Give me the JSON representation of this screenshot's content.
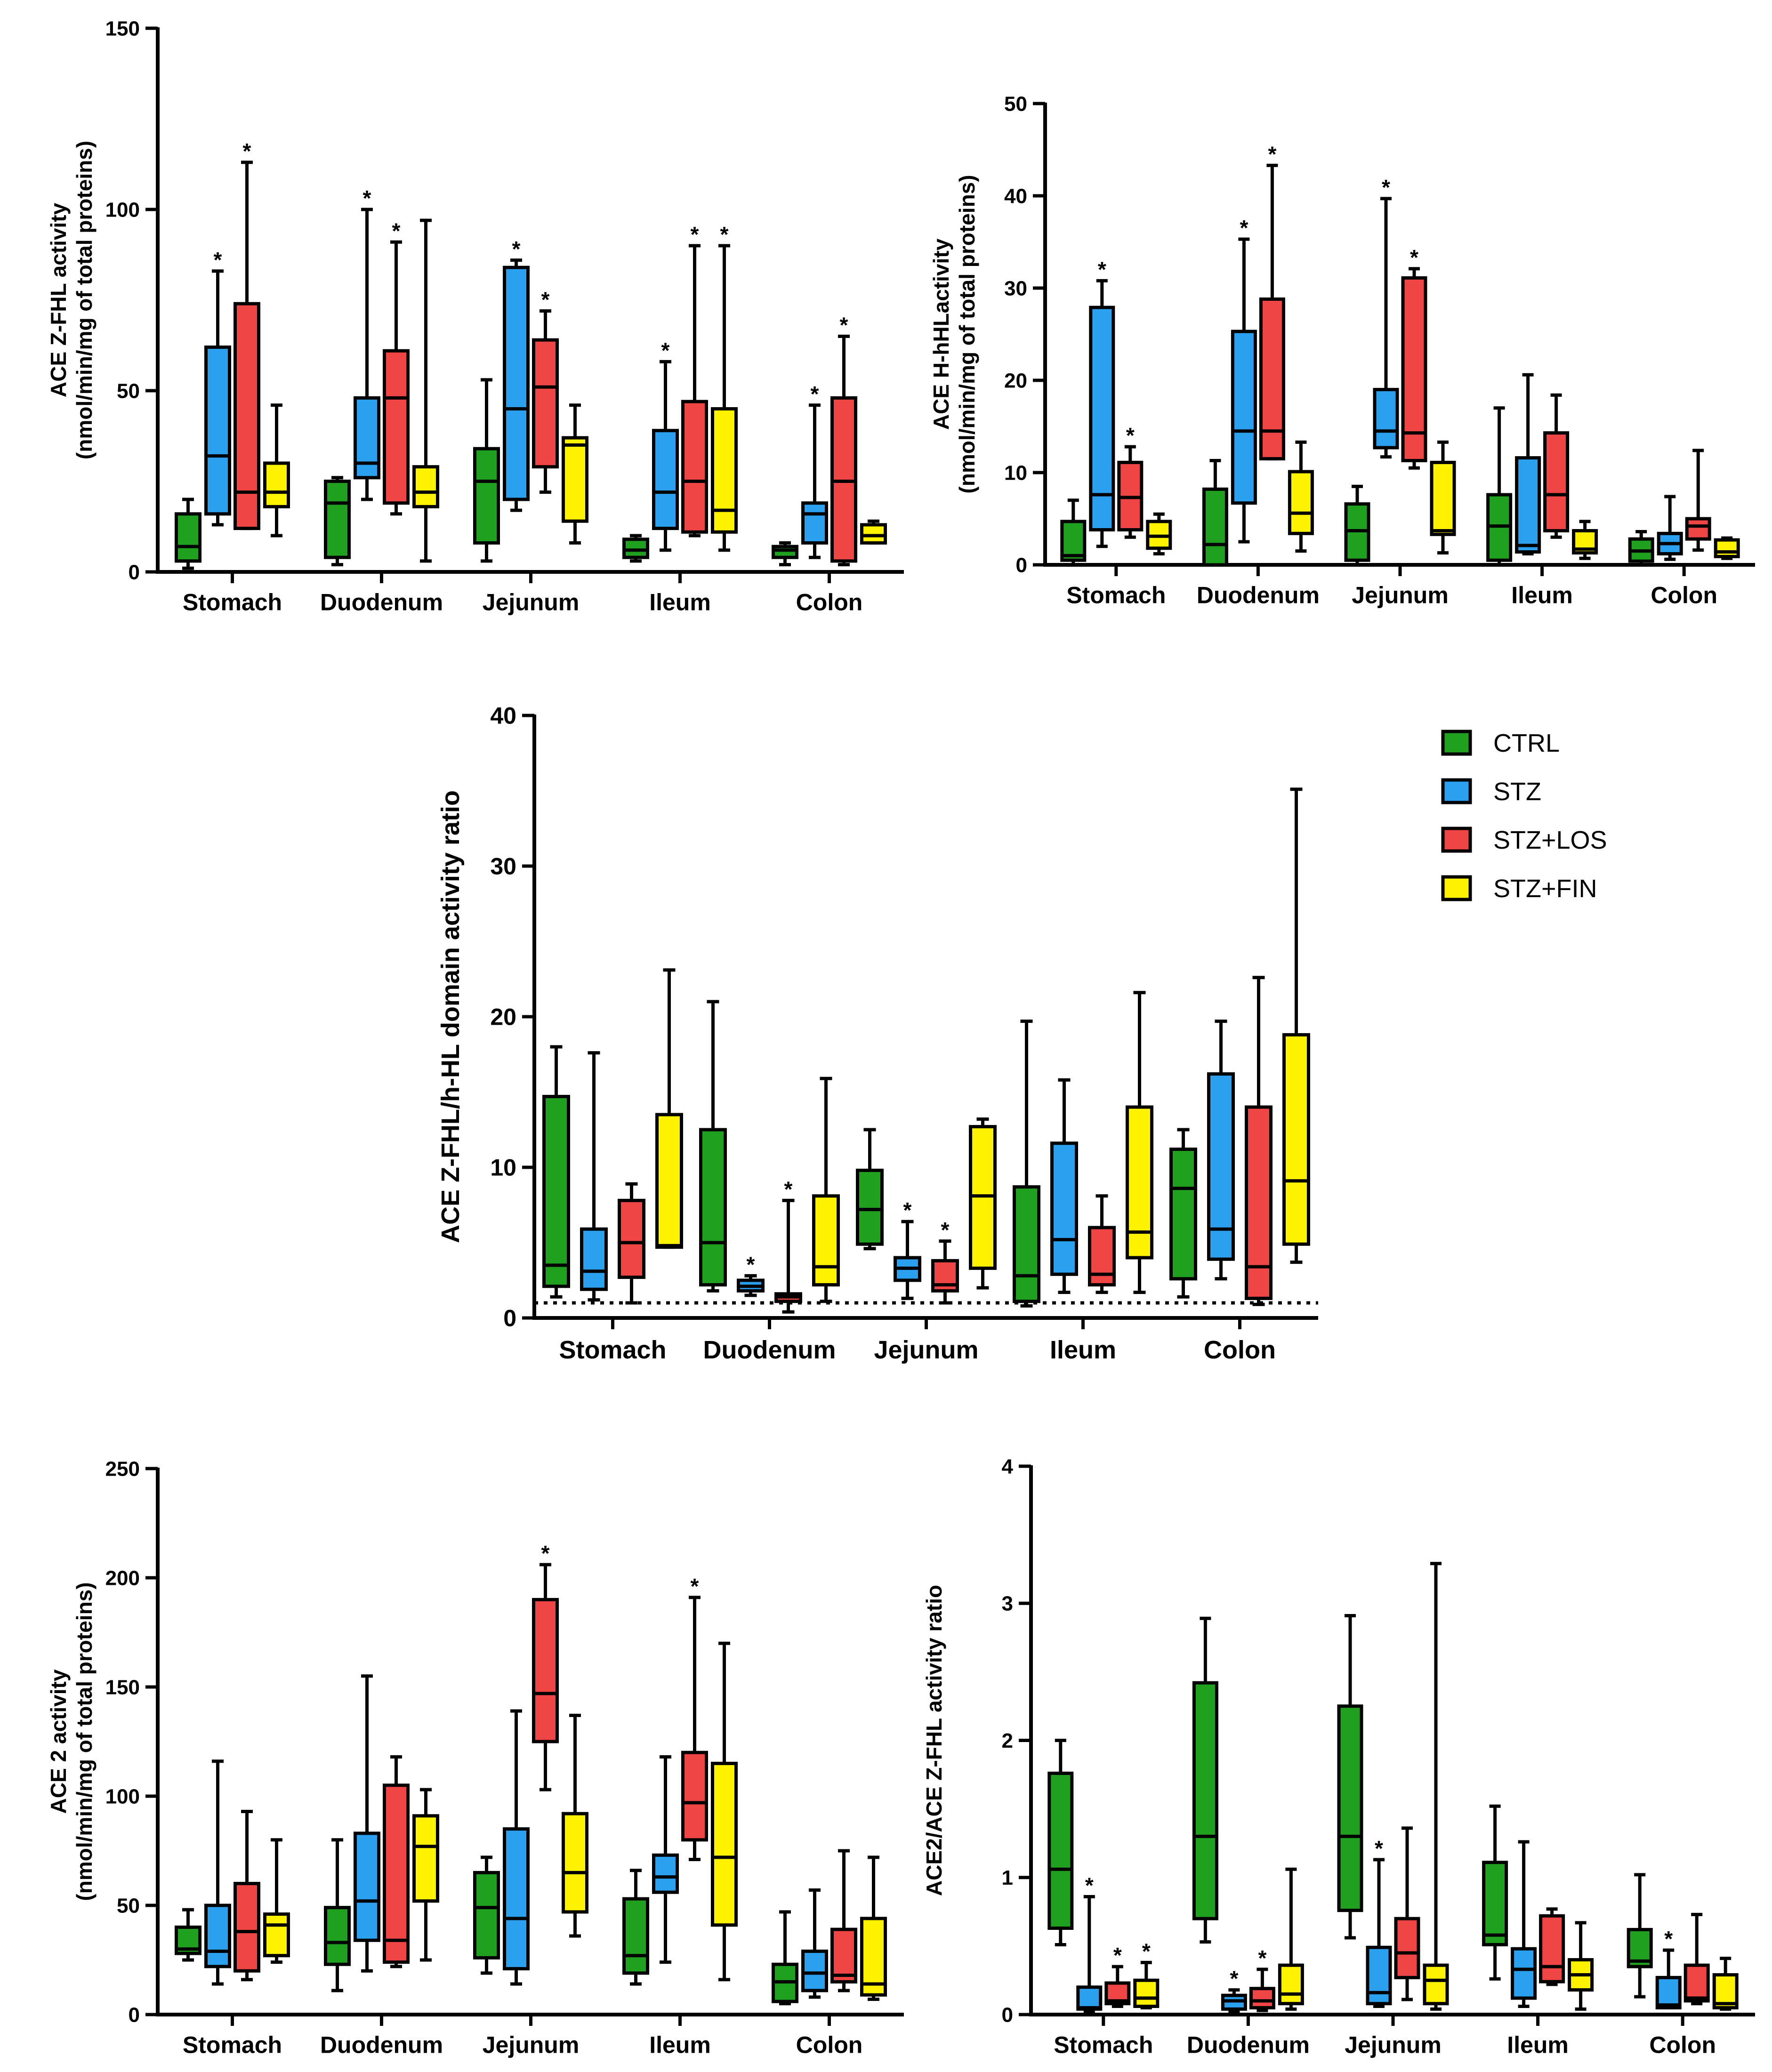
{
  "colors": {
    "CTRL": "#1FA01F",
    "STZ": "#2AA0EE",
    "STZ+LOS": "#F04545",
    "STZ+FIN": "#FFF200"
  },
  "legend": [
    {
      "label": "CTRL",
      "color": "#1FA01F"
    },
    {
      "label": "STZ",
      "color": "#2AA0EE"
    },
    {
      "label": "STZ+LOS",
      "color": "#F04545"
    },
    {
      "label": "STZ+FIN",
      "color": "#FFF200"
    }
  ],
  "chart_data": [
    {
      "id": "zfhl",
      "type": "boxplot",
      "ylabel_lines": [
        "ACE Z-FHL activity",
        "(nmol/min/mg of total proteins)"
      ],
      "ylim": [
        0,
        150
      ],
      "yticks": [
        0,
        50,
        100,
        150
      ],
      "categories": [
        "Stomach",
        "Duodenum",
        "Jejunum",
        "Ileum",
        "Colon"
      ],
      "groups": [
        "CTRL",
        "STZ",
        "STZ+LOS",
        "STZ+FIN"
      ],
      "boxes": [
        [
          [
            1,
            3,
            7,
            16,
            20,
            false
          ],
          [
            13,
            16,
            32,
            62,
            83,
            true
          ],
          [
            12,
            12,
            22,
            74,
            113,
            true
          ],
          [
            10,
            18,
            22,
            30,
            46,
            false
          ]
        ],
        [
          [
            2,
            4,
            19,
            25,
            26,
            false
          ],
          [
            20,
            26,
            30,
            48,
            100,
            true
          ],
          [
            16,
            19,
            48,
            61,
            91,
            true
          ],
          [
            3,
            18,
            22,
            29,
            97,
            false
          ]
        ],
        [
          [
            3,
            8,
            25,
            34,
            53,
            false
          ],
          [
            17,
            20,
            45,
            84,
            86,
            true
          ],
          [
            22,
            29,
            51,
            64,
            72,
            true
          ],
          [
            8,
            14,
            35,
            37,
            46,
            false
          ]
        ],
        [
          [
            3,
            4,
            6,
            9,
            10,
            false
          ],
          [
            6,
            12,
            22,
            39,
            58,
            true
          ],
          [
            10,
            11,
            25,
            47,
            90,
            true
          ],
          [
            6,
            11,
            17,
            45,
            90,
            true
          ]
        ],
        [
          [
            2,
            4,
            6,
            7,
            8,
            false
          ],
          [
            4,
            8,
            16,
            19,
            46,
            true
          ],
          [
            2,
            3,
            25,
            48,
            65,
            true
          ],
          [
            8,
            8,
            10,
            13,
            14,
            false
          ]
        ]
      ]
    },
    {
      "id": "hhl",
      "type": "boxplot",
      "ylabel_lines": [
        "ACE H-hHLactivity",
        "(nmol/min/mg of total proteins)"
      ],
      "ylim": [
        0,
        50
      ],
      "yticks": [
        0,
        10,
        20,
        30,
        40,
        50
      ],
      "categories": [
        "Stomach",
        "Duodenum",
        "Jejunum",
        "Ileum",
        "Colon"
      ],
      "groups": [
        "CTRL",
        "STZ",
        "STZ+LOS",
        "STZ+FIN"
      ],
      "boxes": [
        [
          [
            0,
            0.5,
            1,
            4.7,
            7,
            false
          ],
          [
            2,
            3.8,
            7.6,
            27.9,
            30.8,
            true
          ],
          [
            3,
            3.8,
            7.3,
            11.1,
            12.8,
            true
          ],
          [
            1.2,
            1.8,
            3.1,
            4.7,
            5.5,
            false
          ]
        ],
        [
          [
            0,
            0,
            2.2,
            8.2,
            11.3,
            false
          ],
          [
            2.5,
            6.7,
            14.5,
            25.3,
            35.3,
            true
          ],
          [
            11.5,
            11.5,
            14.5,
            28.8,
            43.3,
            true
          ],
          [
            1.5,
            3.4,
            5.6,
            10.1,
            13.3,
            false
          ]
        ],
        [
          [
            0,
            0.5,
            3.7,
            6.6,
            8.5,
            false
          ],
          [
            11.7,
            12.7,
            14.5,
            19,
            39.7,
            true
          ],
          [
            10.5,
            11.3,
            14.3,
            31.1,
            32.1,
            true
          ],
          [
            1.3,
            3.3,
            3.7,
            11.1,
            13.3,
            false
          ]
        ],
        [
          [
            0,
            0.5,
            4.2,
            7.6,
            17,
            false
          ],
          [
            1.2,
            1.4,
            2.1,
            11.6,
            20.6,
            false
          ],
          [
            3,
            3.7,
            7.6,
            14.3,
            18.4,
            false
          ],
          [
            0.7,
            1.3,
            1.7,
            3.7,
            4.7,
            false
          ]
        ],
        [
          [
            0,
            0.4,
            1.5,
            2.8,
            3.6,
            false
          ],
          [
            0.6,
            1.2,
            2.3,
            3.4,
            7.4,
            false
          ],
          [
            1.6,
            2.8,
            4.2,
            5,
            12.4,
            false
          ],
          [
            0.7,
            0.9,
            1.4,
            2.7,
            2.9,
            false
          ]
        ]
      ]
    },
    {
      "id": "ratio",
      "type": "boxplot",
      "ylabel_lines": [
        "ACE Z-FHL/h-HL domain activity ratio"
      ],
      "ylim": [
        0,
        40
      ],
      "yticks": [
        0,
        10,
        20,
        30,
        40
      ],
      "reference_line": 1,
      "categories": [
        "Stomach",
        "Duodenum",
        "Jejunum",
        "Ileum",
        "Colon"
      ],
      "groups": [
        "CTRL",
        "STZ",
        "STZ+LOS",
        "STZ+FIN"
      ],
      "boxes": [
        [
          [
            1.4,
            2.1,
            3.5,
            14.7,
            18,
            false
          ],
          [
            1.2,
            1.9,
            3.1,
            5.9,
            17.6,
            false
          ],
          [
            1,
            2.7,
            5,
            7.8,
            8.9,
            false
          ],
          [
            4.7,
            4.7,
            4.8,
            13.5,
            23.1,
            false
          ]
        ],
        [
          [
            1.8,
            2.2,
            5,
            12.5,
            21,
            false
          ],
          [
            1.5,
            1.8,
            2.1,
            2.5,
            2.8,
            true
          ],
          [
            0.4,
            1.1,
            1.4,
            1.6,
            7.8,
            true
          ],
          [
            1.1,
            2.2,
            3.4,
            8.1,
            15.9,
            false
          ]
        ],
        [
          [
            4.6,
            4.9,
            7.2,
            9.8,
            12.5,
            false
          ],
          [
            1.3,
            2.5,
            3.3,
            4,
            6.4,
            true
          ],
          [
            1,
            1.8,
            2.2,
            3.8,
            5.1,
            true
          ],
          [
            2,
            3.3,
            8.1,
            12.7,
            13.2,
            false
          ]
        ],
        [
          [
            0.8,
            1.1,
            2.8,
            8.7,
            19.7,
            false
          ],
          [
            1.7,
            2.9,
            5.2,
            11.6,
            15.8,
            false
          ],
          [
            1.7,
            2.2,
            2.9,
            6,
            8.1,
            false
          ],
          [
            1.7,
            4,
            5.7,
            14,
            21.6,
            false
          ]
        ],
        [
          [
            1.4,
            2.6,
            8.6,
            11.2,
            12.5,
            false
          ],
          [
            2.6,
            3.9,
            5.9,
            16.2,
            19.7,
            false
          ],
          [
            0.9,
            1.3,
            3.4,
            14,
            22.6,
            false
          ],
          [
            3.7,
            4.9,
            9.1,
            18.8,
            35.1,
            false
          ]
        ]
      ]
    },
    {
      "id": "ace2",
      "type": "boxplot",
      "ylabel_lines": [
        "ACE 2 activity",
        "(nmol/min/mg of total proteins)"
      ],
      "ylim": [
        0,
        250
      ],
      "yticks": [
        0,
        50,
        100,
        150,
        200,
        250
      ],
      "categories": [
        "Stomach",
        "Duodenum",
        "Jejunum",
        "Ileum",
        "Colon"
      ],
      "groups": [
        "CTRL",
        "STZ",
        "STZ+LOS",
        "STZ+FIN"
      ],
      "boxes": [
        [
          [
            25,
            28,
            30,
            40,
            48,
            false
          ],
          [
            14,
            22,
            29,
            50,
            116,
            false
          ],
          [
            16,
            20,
            38,
            60,
            93,
            false
          ],
          [
            24,
            27,
            41,
            46,
            80,
            false
          ]
        ],
        [
          [
            11,
            23,
            33,
            49,
            80,
            false
          ],
          [
            20,
            34,
            52,
            83,
            155,
            false
          ],
          [
            22,
            24,
            34,
            105,
            118,
            false
          ],
          [
            25,
            52,
            77,
            91,
            103,
            false
          ]
        ],
        [
          [
            19,
            26,
            49,
            65,
            72,
            false
          ],
          [
            14,
            21,
            44,
            85,
            139,
            false
          ],
          [
            103,
            125,
            147,
            190,
            206,
            true
          ],
          [
            36,
            47,
            65,
            92,
            137,
            false
          ]
        ],
        [
          [
            14,
            19,
            27,
            53,
            66,
            false
          ],
          [
            24,
            56,
            63,
            73,
            118,
            false
          ],
          [
            71,
            80,
            97,
            120,
            191,
            true
          ],
          [
            16,
            41,
            72,
            115,
            170,
            false
          ]
        ],
        [
          [
            5,
            6,
            15,
            23,
            47,
            false
          ],
          [
            8,
            11,
            19,
            29,
            57,
            false
          ],
          [
            11,
            15,
            18,
            39,
            75,
            false
          ],
          [
            7,
            9,
            14,
            44,
            72,
            false
          ]
        ]
      ]
    },
    {
      "id": "ace2ratio",
      "type": "boxplot",
      "ylabel_lines": [
        "ACE2/ACE Z-FHL activity ratio"
      ],
      "ylim": [
        0,
        4
      ],
      "yticks": [
        0,
        1,
        2,
        3,
        4
      ],
      "categories": [
        "Stomach",
        "Duodenum",
        "Jejunum",
        "Ileum",
        "Colon"
      ],
      "groups": [
        "CTRL",
        "STZ",
        "STZ+LOS",
        "STZ+FIN"
      ],
      "boxes": [
        [
          [
            0.51,
            0.63,
            1.06,
            1.76,
            2,
            false
          ],
          [
            0.02,
            0.04,
            0.05,
            0.2,
            0.86,
            true
          ],
          [
            0.06,
            0.08,
            0.1,
            0.23,
            0.35,
            true
          ],
          [
            0.05,
            0.06,
            0.12,
            0.25,
            0.38,
            true
          ]
        ],
        [
          [
            0.53,
            0.7,
            1.3,
            2.42,
            2.89,
            false
          ],
          [
            0.02,
            0.04,
            0.1,
            0.14,
            0.18,
            true
          ],
          [
            0.03,
            0.05,
            0.1,
            0.19,
            0.33,
            true
          ],
          [
            0.04,
            0.08,
            0.15,
            0.36,
            1.06,
            false
          ]
        ],
        [
          [
            0.56,
            0.76,
            1.3,
            2.25,
            2.91,
            false
          ],
          [
            0.06,
            0.08,
            0.16,
            0.49,
            1.13,
            true
          ],
          [
            0.11,
            0.27,
            0.45,
            0.7,
            1.36,
            false
          ],
          [
            0.04,
            0.08,
            0.25,
            0.36,
            3.29,
            false
          ]
        ],
        [
          [
            0.26,
            0.51,
            0.58,
            1.11,
            1.52,
            false
          ],
          [
            0.06,
            0.12,
            0.33,
            0.48,
            1.26,
            false
          ],
          [
            0.22,
            0.24,
            0.35,
            0.72,
            0.77,
            false
          ],
          [
            0.04,
            0.18,
            0.29,
            0.4,
            0.67,
            false
          ]
        ],
        [
          [
            0.13,
            0.35,
            0.39,
            0.62,
            1.02,
            false
          ],
          [
            0.05,
            0.05,
            0.07,
            0.27,
            0.47,
            true
          ],
          [
            0.08,
            0.1,
            0.12,
            0.36,
            0.73,
            false
          ],
          [
            0.04,
            0.05,
            0.08,
            0.29,
            0.41,
            false
          ]
        ]
      ]
    }
  ]
}
